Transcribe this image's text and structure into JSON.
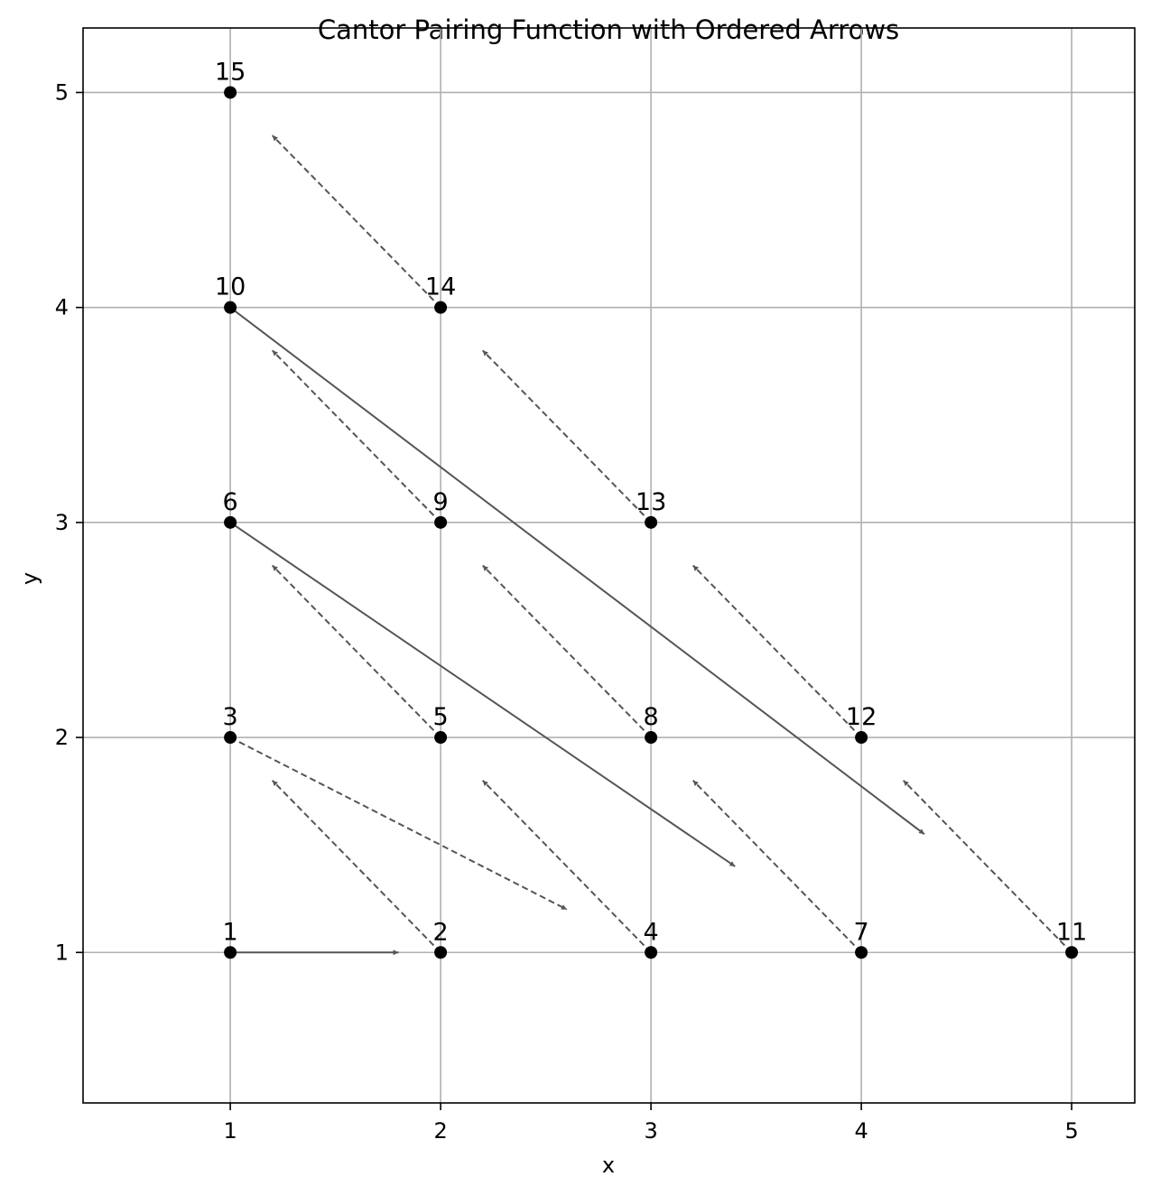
{
  "chart_data": {
    "type": "scatter",
    "title": "Cantor Pairing Function with Ordered Arrows",
    "xlabel": "x",
    "ylabel": "y",
    "xlim": [
      0.3,
      5.3
    ],
    "ylim": [
      0.3,
      5.3
    ],
    "xticks": [
      "1",
      "2",
      "3",
      "4",
      "5"
    ],
    "yticks": [
      "1",
      "2",
      "3",
      "4",
      "5"
    ],
    "grid": true,
    "point_color": "#000000",
    "arrow_color": "#555555",
    "points": [
      {
        "x": 1,
        "y": 1,
        "label": "1"
      },
      {
        "x": 2,
        "y": 1,
        "label": "2"
      },
      {
        "x": 1,
        "y": 2,
        "label": "3"
      },
      {
        "x": 3,
        "y": 1,
        "label": "4"
      },
      {
        "x": 2,
        "y": 2,
        "label": "5"
      },
      {
        "x": 1,
        "y": 3,
        "label": "6"
      },
      {
        "x": 4,
        "y": 1,
        "label": "7"
      },
      {
        "x": 3,
        "y": 2,
        "label": "8"
      },
      {
        "x": 2,
        "y": 3,
        "label": "9"
      },
      {
        "x": 1,
        "y": 4,
        "label": "10"
      },
      {
        "x": 5,
        "y": 1,
        "label": "11"
      },
      {
        "x": 4,
        "y": 2,
        "label": "12"
      },
      {
        "x": 3,
        "y": 3,
        "label": "13"
      },
      {
        "x": 2,
        "y": 4,
        "label": "14"
      },
      {
        "x": 1,
        "y": 5,
        "label": "15"
      }
    ],
    "arrows": [
      {
        "from": "1",
        "x1": 1,
        "y1": 1,
        "x2": 1.8,
        "y2": 1,
        "style": "solid"
      },
      {
        "from": "2",
        "x1": 2,
        "y1": 1,
        "x2": 1.2,
        "y2": 1.8,
        "style": "dashed"
      },
      {
        "from": "3",
        "x1": 1,
        "y1": 2,
        "x2": 2.6,
        "y2": 1.2,
        "style": "dashed"
      },
      {
        "from": "4",
        "x1": 3,
        "y1": 1,
        "x2": 2.2,
        "y2": 1.8,
        "style": "dashed"
      },
      {
        "from": "5",
        "x1": 2,
        "y1": 2,
        "x2": 1.2,
        "y2": 2.8,
        "style": "dashed"
      },
      {
        "from": "6",
        "x1": 1,
        "y1": 3,
        "x2": 3.4,
        "y2": 1.4,
        "style": "solid"
      },
      {
        "from": "7",
        "x1": 4,
        "y1": 1,
        "x2": 3.2,
        "y2": 1.8,
        "style": "dashed"
      },
      {
        "from": "8",
        "x1": 3,
        "y1": 2,
        "x2": 2.2,
        "y2": 2.8,
        "style": "dashed"
      },
      {
        "from": "9",
        "x1": 2,
        "y1": 3,
        "x2": 1.2,
        "y2": 3.8,
        "style": "dashed"
      },
      {
        "from": "10",
        "x1": 1,
        "y1": 4,
        "x2": 4.3,
        "y2": 1.55,
        "style": "solid"
      },
      {
        "from": "11",
        "x1": 5,
        "y1": 1,
        "x2": 4.2,
        "y2": 1.8,
        "style": "dashed"
      },
      {
        "from": "12",
        "x1": 4,
        "y1": 2,
        "x2": 3.2,
        "y2": 2.8,
        "style": "dashed"
      },
      {
        "from": "13",
        "x1": 3,
        "y1": 3,
        "x2": 2.2,
        "y2": 3.8,
        "style": "dashed"
      },
      {
        "from": "14",
        "x1": 2,
        "y1": 4,
        "x2": 1.2,
        "y2": 4.8,
        "style": "dashed"
      }
    ]
  }
}
